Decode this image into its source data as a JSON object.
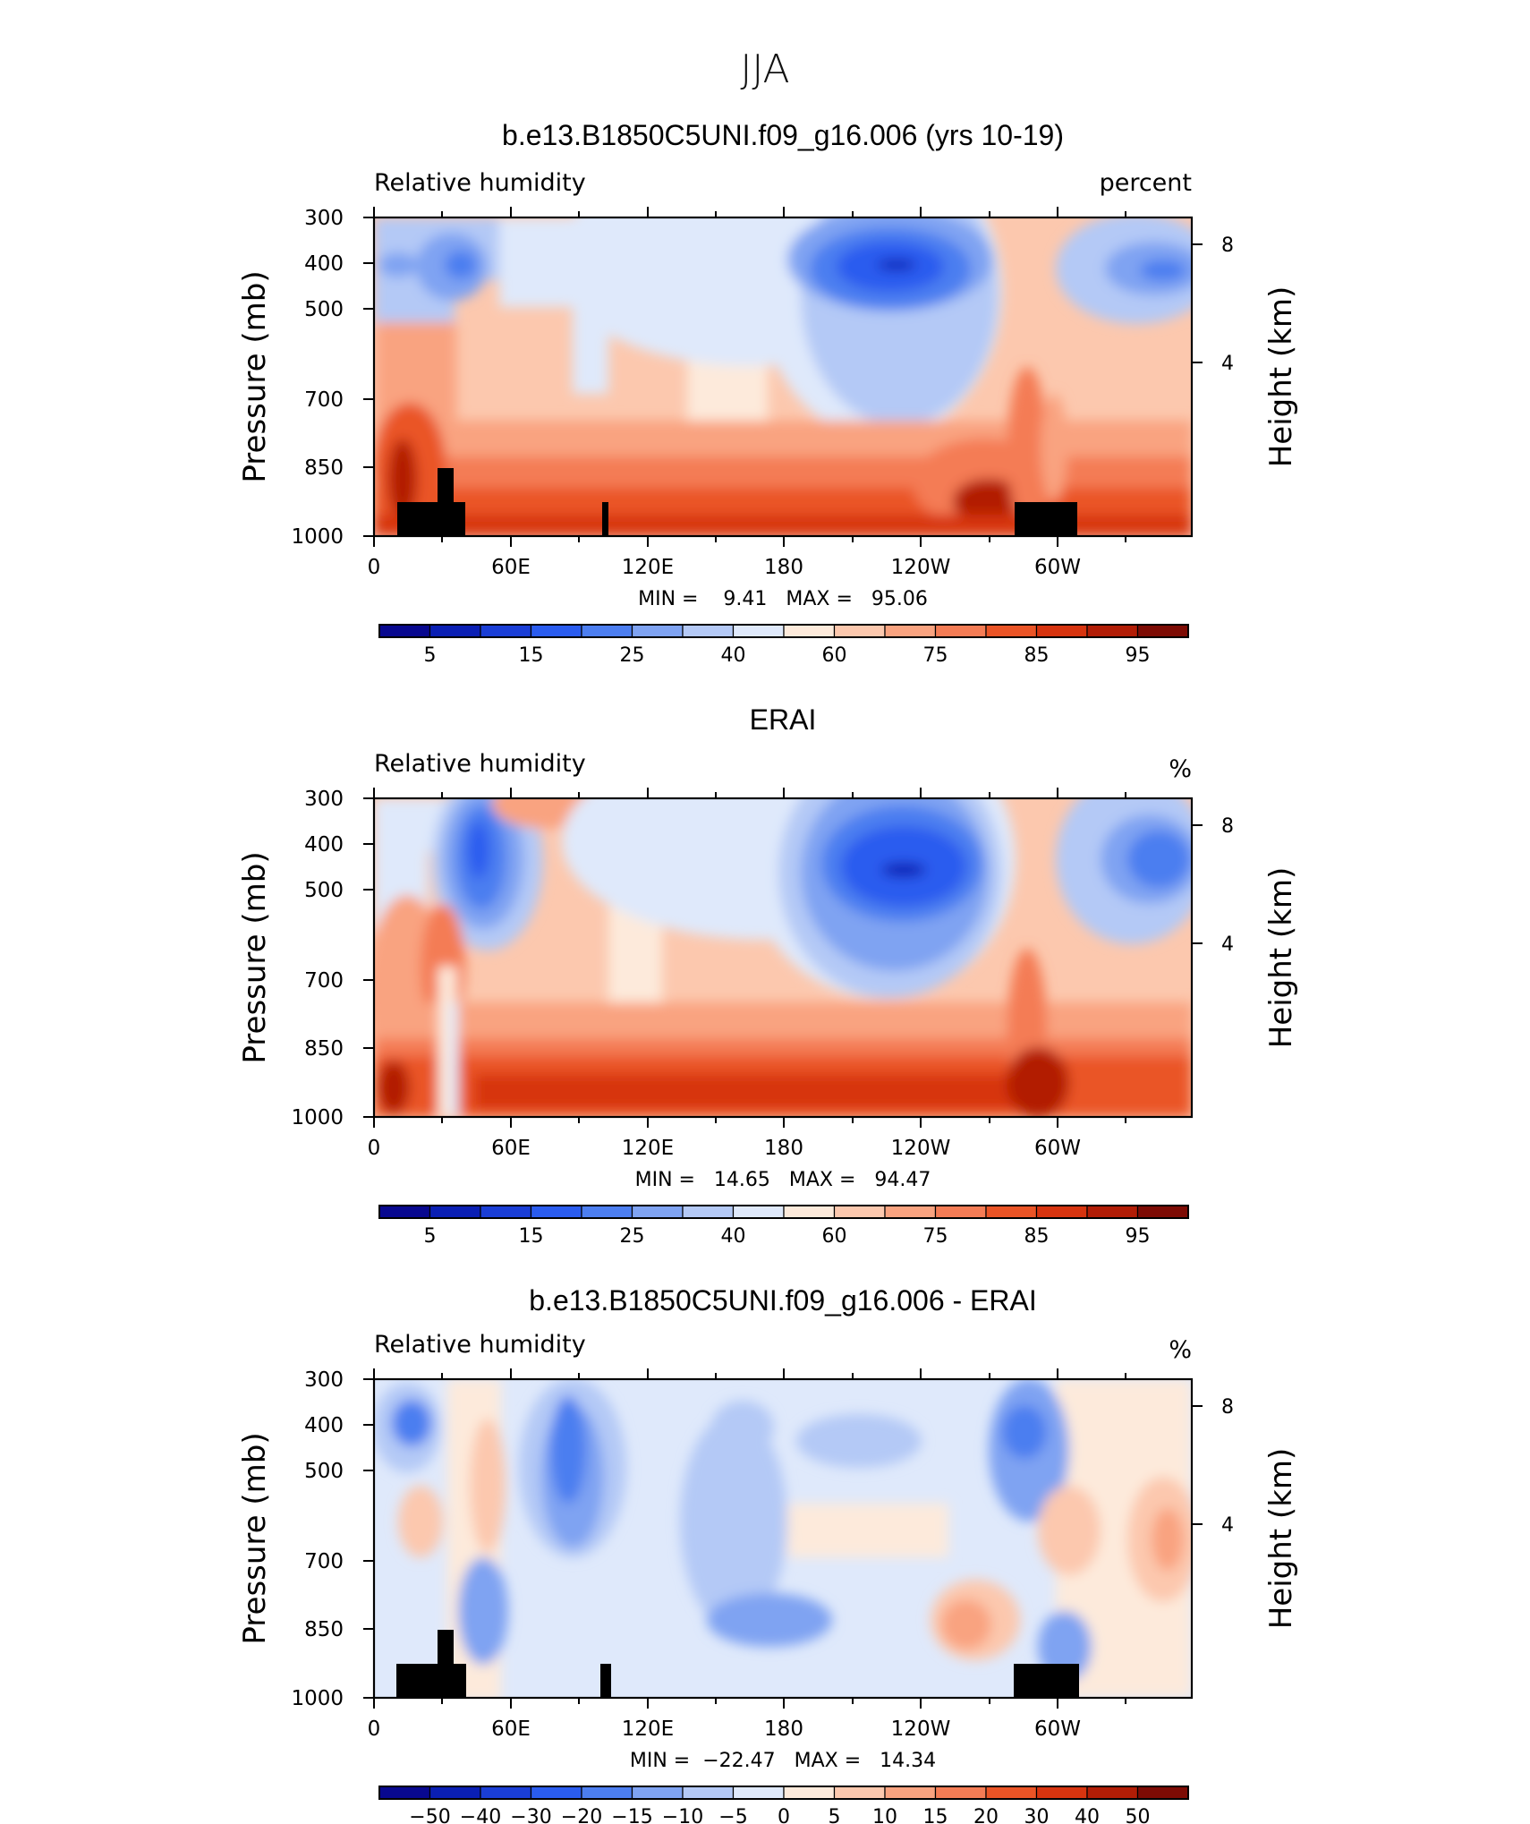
{
  "figure_title": "JJA",
  "chart_data": [
    {
      "type": "heatmap",
      "title": "b.e13.B1850C5UNI.f09_g16.006 (yrs 10-19)",
      "left_label": "Relative humidity",
      "right_label": "percent",
      "ylabel": "Pressure (mb)",
      "ylabel_right": "Height (km)",
      "x_tick_labels": [
        "0",
        "60E",
        "120E",
        "180",
        "120W",
        "60W"
      ],
      "y_tick_labels": [
        "300",
        "400",
        "500",
        "700",
        "850",
        "1000"
      ],
      "y_right_tick_labels": [
        "8",
        "4"
      ],
      "stats_text": "MIN =    9.41   MAX =   95.06",
      "min": 9.41,
      "max": 95.06,
      "colorbar_labels": [
        "5",
        "15",
        "25",
        "40",
        "60",
        "75",
        "85",
        "95"
      ],
      "colorbar_levels": [
        5,
        10,
        15,
        20,
        25,
        30,
        40,
        50,
        60,
        65,
        75,
        80,
        85,
        90,
        95
      ]
    },
    {
      "type": "heatmap",
      "title": "ERAI",
      "left_label": "Relative humidity",
      "right_label": "%",
      "ylabel": "Pressure (mb)",
      "ylabel_right": "Height (km)",
      "x_tick_labels": [
        "0",
        "60E",
        "120E",
        "180",
        "120W",
        "60W"
      ],
      "y_tick_labels": [
        "300",
        "400",
        "500",
        "700",
        "850",
        "1000"
      ],
      "y_right_tick_labels": [
        "8",
        "4"
      ],
      "stats_text": "MIN =   14.65   MAX =   94.47",
      "min": 14.65,
      "max": 94.47,
      "colorbar_labels": [
        "5",
        "15",
        "25",
        "40",
        "60",
        "75",
        "85",
        "95"
      ],
      "colorbar_levels": [
        5,
        10,
        15,
        20,
        25,
        30,
        40,
        50,
        60,
        65,
        75,
        80,
        85,
        90,
        95
      ]
    },
    {
      "type": "heatmap",
      "title": "b.e13.B1850C5UNI.f09_g16.006 - ERAI",
      "left_label": "Relative humidity",
      "right_label": "%",
      "ylabel": "Pressure (mb)",
      "ylabel_right": "Height (km)",
      "x_tick_labels": [
        "0",
        "60E",
        "120E",
        "180",
        "120W",
        "60W"
      ],
      "y_tick_labels": [
        "300",
        "400",
        "500",
        "700",
        "850",
        "1000"
      ],
      "y_right_tick_labels": [
        "8",
        "4"
      ],
      "stats_text": "MIN =  −22.47   MAX =   14.34",
      "min": -22.47,
      "max": 14.34,
      "colorbar_labels": [
        "−50",
        "−40",
        "−30",
        "−20",
        "−15",
        "−10",
        "−5",
        "0",
        "5",
        "10",
        "15",
        "20",
        "30",
        "40",
        "50"
      ],
      "colorbar_levels": [
        -50,
        -40,
        -30,
        -20,
        -15,
        -10,
        -5,
        0,
        5,
        10,
        15,
        20,
        30,
        40,
        50
      ]
    }
  ],
  "colors": {
    "palette": [
      "#08088f",
      "#0a1fb4",
      "#1a3ed6",
      "#2a5cef",
      "#4c7ef0",
      "#7fa3f2",
      "#b4c9f6",
      "#dfe9fb",
      "#fdeadb",
      "#fcc8ae",
      "#f9a380",
      "#f47c55",
      "#ea5426",
      "#d7340f",
      "#b21d06",
      "#7d0b04"
    ],
    "topography": "#000000"
  }
}
